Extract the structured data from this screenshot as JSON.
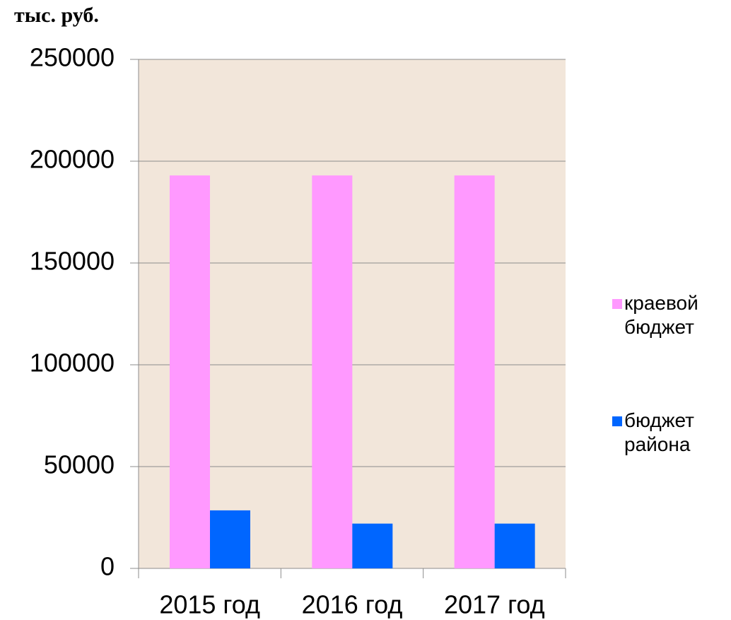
{
  "chart_data": {
    "type": "bar",
    "title": "тыс. руб.",
    "categories": [
      "2015 год",
      "2016 год",
      "2017 год"
    ],
    "series": [
      {
        "name": "краевой бюджет",
        "color": "#ff99ff",
        "values": [
          193000,
          193000,
          193000
        ]
      },
      {
        "name": "бюджет района",
        "color": "#0066ff",
        "values": [
          28500,
          22000,
          22000
        ]
      }
    ],
    "ylim": [
      0,
      250000
    ],
    "yticks": [
      0,
      50000,
      100000,
      150000,
      200000,
      250000
    ],
    "grid": true,
    "legend": "right"
  }
}
